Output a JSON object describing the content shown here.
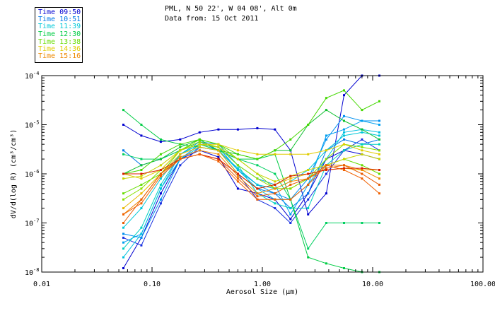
{
  "header": {
    "line1": "PML, N 50 22', W 04 08', Alt 0m",
    "line2": "Data from: 15 Oct 2011"
  },
  "legend": [
    {
      "label": "Time 09:50",
      "color": "#0000d0"
    },
    {
      "label": "Time 10:51",
      "color": "#0078e8"
    },
    {
      "label": "Time 11:39",
      "color": "#00c8d8"
    },
    {
      "label": "Time 12:30",
      "color": "#00cc44"
    },
    {
      "label": "Time 13:38",
      "color": "#66dd00"
    },
    {
      "label": "Time 14:36",
      "color": "#e0cc00"
    },
    {
      "label": "Time 15:16",
      "color": "#ee8800"
    }
  ],
  "chart_data": {
    "type": "line",
    "title": "PML, N 50 22', W 04 08', Alt 0m",
    "subtitle": "Data from: 15 Oct 2011",
    "xlabel": "Aerosol Size (μm)",
    "ylabel": "dV/d(log R) (cm³/cm³)",
    "xscale": "log",
    "yscale": "log",
    "xlim": [
      0.01,
      100
    ],
    "ylim": [
      1e-08,
      0.0001
    ],
    "x_ticks": [
      "0.01",
      "0.10",
      "1.00",
      "10.00",
      "100.00"
    ],
    "y_ticks": [
      "10^-8",
      "10^-7",
      "10^-6",
      "10^-5",
      "10^-4"
    ],
    "x": [
      0.055,
      0.08,
      0.12,
      0.18,
      0.27,
      0.4,
      0.6,
      0.9,
      1.3,
      1.8,
      2.6,
      3.8,
      5.5,
      8.0,
      11.5
    ],
    "series": [
      {
        "name": "09:50 a",
        "color": "#0000d0",
        "values": [
          1.2e-08,
          5e-08,
          4e-07,
          2e-06,
          3e-06,
          2.2e-06,
          5e-07,
          4e-07,
          3e-07,
          1.2e-07,
          4e-07,
          2e-06,
          3e-06,
          2.5e-06,
          2e-06
        ]
      },
      {
        "name": "09:50 b",
        "color": "#0000d0",
        "values": [
          1e-05,
          6e-06,
          4.5e-06,
          5e-06,
          7e-06,
          8e-06,
          8e-06,
          8.5e-06,
          8e-06,
          3e-06,
          1.5e-07,
          4e-07,
          4e-05,
          0.0001,
          0.0001
        ]
      },
      {
        "name": "09:50 c",
        "color": "#1830e0",
        "values": [
          5e-08,
          3.5e-08,
          2.5e-07,
          1.5e-06,
          3.5e-06,
          3e-06,
          1e-06,
          3e-07,
          2e-07,
          1e-07,
          3e-07,
          1e-06,
          3e-06,
          5e-06,
          3e-06
        ]
      },
      {
        "name": "10:51 a",
        "color": "#0078e8",
        "values": [
          3e-06,
          1.5e-06,
          2e-06,
          3e-06,
          4.5e-06,
          3e-06,
          1e-06,
          5e-07,
          4e-07,
          2e-07,
          4e-07,
          3e-06,
          5e-06,
          4e-06,
          5e-06
        ]
      },
      {
        "name": "10:51 b",
        "color": "#0090f0",
        "values": [
          6e-08,
          5e-08,
          3e-07,
          2e-06,
          4e-06,
          3.5e-06,
          1.2e-06,
          6e-07,
          4e-07,
          3e-07,
          8e-07,
          5e-06,
          1.5e-05,
          1.2e-05,
          1.2e-05
        ]
      },
      {
        "name": "10:51 c",
        "color": "#00a0f0",
        "values": [
          4e-08,
          6e-08,
          5e-07,
          2.5e-06,
          4.5e-06,
          4e-06,
          1.5e-06,
          8e-07,
          6e-07,
          1.5e-07,
          6e-07,
          6e-06,
          8e-06,
          1.2e-05,
          1e-05
        ]
      },
      {
        "name": "11:39 a",
        "color": "#00c8d8",
        "values": [
          8e-08,
          2e-07,
          8e-07,
          2.5e-06,
          4e-06,
          3e-06,
          1.3e-06,
          6e-07,
          5e-07,
          7e-07,
          1.2e-06,
          3e-06,
          6e-06,
          7e-06,
          6e-06
        ]
      },
      {
        "name": "11:39 b",
        "color": "#00d0c0",
        "values": [
          3e-08,
          8e-08,
          6e-07,
          2.5e-06,
          4e-06,
          3.5e-06,
          1.5e-06,
          4e-07,
          2.5e-07,
          2e-07,
          2e-07,
          1.5e-06,
          3e-06,
          4e-06,
          4e-06
        ]
      },
      {
        "name": "11:39 c",
        "color": "#00c0e0",
        "values": [
          2e-08,
          6e-08,
          5e-07,
          2e-06,
          3.5e-06,
          3e-06,
          1.2e-06,
          5e-07,
          3e-07,
          3e-07,
          6e-07,
          2e-06,
          7e-06,
          8e-06,
          7e-06
        ]
      },
      {
        "name": "12:30 a",
        "color": "#00cc44",
        "values": [
          2e-05,
          1e-05,
          5e-06,
          4e-06,
          3.5e-06,
          3e-06,
          2e-06,
          2e-06,
          2.5e-06,
          3e-07,
          2e-08,
          1.5e-08,
          1.2e-08,
          1e-08,
          1e-08
        ]
      },
      {
        "name": "12:30 b",
        "color": "#00d060",
        "values": [
          2.5e-06,
          2e-06,
          2e-06,
          3e-06,
          4e-06,
          3e-06,
          2e-06,
          1.5e-06,
          1e-06,
          3e-07,
          3e-08,
          1e-07,
          1e-07,
          1e-07,
          1e-07
        ]
      },
      {
        "name": "12:30 c",
        "color": "#10c030",
        "values": [
          1e-06,
          1.5e-06,
          2e-06,
          3.5e-06,
          5e-06,
          3e-06,
          2.5e-06,
          2e-06,
          3e-06,
          3e-06,
          1e-05,
          2e-05,
          1.2e-05,
          8e-06,
          5e-06
        ]
      },
      {
        "name": "13:38 a",
        "color": "#66dd00",
        "values": [
          4e-07,
          6e-07,
          1e-06,
          3e-06,
          5e-06,
          4e-06,
          2e-06,
          1e-06,
          5e-07,
          5e-07,
          8e-07,
          1.5e-06,
          2e-06,
          1.5e-06,
          1e-06
        ]
      },
      {
        "name": "13:38 b",
        "color": "#44d800",
        "values": [
          1e-06,
          1.2e-06,
          2.5e-06,
          4e-06,
          5e-06,
          4e-06,
          2.5e-06,
          2e-06,
          3e-06,
          5e-06,
          1e-05,
          3.5e-05,
          5e-05,
          2e-05,
          3e-05
        ]
      },
      {
        "name": "13:38 c",
        "color": "#88e000",
        "values": [
          3e-07,
          5e-07,
          1.2e-06,
          3e-06,
          4.5e-06,
          3.5e-06,
          1.5e-06,
          8e-07,
          5e-07,
          5e-07,
          8e-07,
          2e-06,
          4e-06,
          3.5e-06,
          3e-06
        ]
      },
      {
        "name": "14:36 a",
        "color": "#e0cc00",
        "values": [
          1e-06,
          8e-07,
          1.2e-06,
          3e-06,
          4e-06,
          4e-06,
          3e-06,
          2.5e-06,
          2.5e-06,
          2.5e-06,
          2.5e-06,
          3e-06,
          4e-06,
          3e-06,
          2.5e-06
        ]
      },
      {
        "name": "14:36 b",
        "color": "#c8d400",
        "values": [
          8e-07,
          9e-07,
          1.5e-06,
          3e-06,
          4e-06,
          3.5e-06,
          2e-06,
          1e-06,
          7e-07,
          9e-07,
          1.2e-06,
          1.5e-06,
          2e-06,
          2.5e-06,
          2e-06
        ]
      },
      {
        "name": "14:36 c",
        "color": "#e8b800",
        "values": [
          2e-07,
          4e-07,
          1e-06,
          2.5e-06,
          3.5e-06,
          3e-06,
          1e-06,
          5e-07,
          6e-07,
          8e-07,
          1e-06,
          1.2e-06,
          1.3e-06,
          1.2e-06,
          1.2e-06
        ]
      },
      {
        "name": "15:16 a",
        "color": "#ee8800",
        "values": [
          1.5e-07,
          3e-07,
          1e-06,
          2.2e-06,
          3e-06,
          2.5e-06,
          9e-07,
          4e-07,
          5e-07,
          7e-07,
          8e-07,
          1.5e-06,
          1.5e-06,
          1.2e-06,
          8e-07
        ]
      },
      {
        "name": "15:16 b",
        "color": "#e85a00",
        "values": [
          1e-07,
          3e-07,
          1e-06,
          2e-06,
          2.5e-06,
          2e-06,
          8e-07,
          3.5e-07,
          4e-07,
          6e-07,
          8e-07,
          1.3e-06,
          1.5e-06,
          1e-06,
          6e-07
        ]
      },
      {
        "name": "15:16 c",
        "color": "#d82000",
        "values": [
          1e-06,
          1e-06,
          1.2e-06,
          2e-06,
          2.5e-06,
          2e-06,
          1e-06,
          5e-07,
          6e-07,
          9e-07,
          1e-06,
          1.2e-06,
          1.3e-06,
          1.3e-06,
          1.2e-06
        ]
      },
      {
        "name": "15:16 d",
        "color": "#f06000",
        "values": [
          1.5e-07,
          2.5e-07,
          9e-07,
          2e-06,
          2.5e-06,
          1.8e-06,
          7e-07,
          3e-07,
          3e-07,
          3e-07,
          6e-07,
          1.5e-06,
          1.2e-06,
          8e-07,
          4e-07
        ]
      }
    ]
  }
}
